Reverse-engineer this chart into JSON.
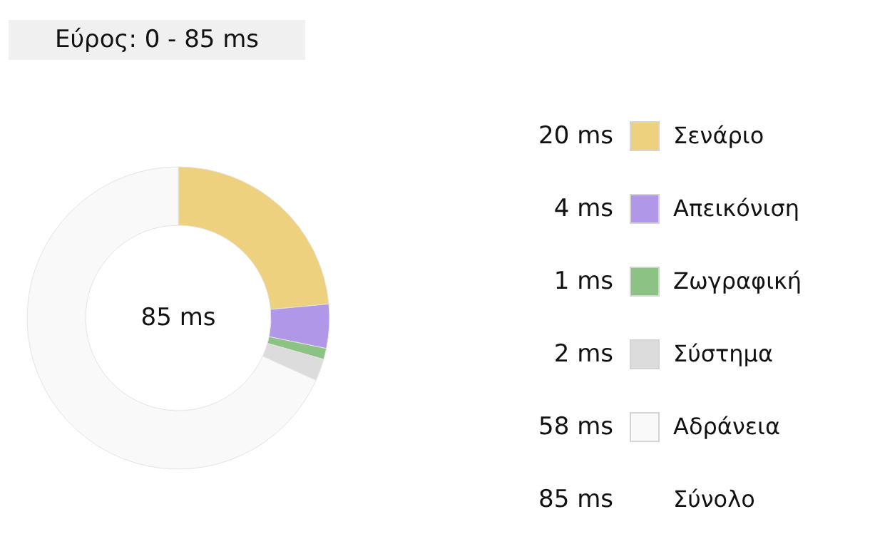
{
  "chart_data": {
    "type": "donut",
    "title": "Εύρος: 0 - 85 ms",
    "categories": [
      "Σενάριο",
      "Απεικόνιση",
      "Ζωγραφική",
      "Σύστημα",
      "Αδράνεια"
    ],
    "values": [
      20,
      4,
      1,
      2,
      58
    ],
    "colors": [
      "#eed17f",
      "#b097e8",
      "#8cc384",
      "#dcdcdc",
      "#f9f9f9"
    ],
    "value_labels": [
      "20 ms",
      "4 ms",
      "1 ms",
      "2 ms",
      "58 ms"
    ],
    "data_labels": true,
    "legend": "right",
    "annotations": [
      "85 ms",
      "85 ms",
      "Σύνολο"
    ]
  }
}
